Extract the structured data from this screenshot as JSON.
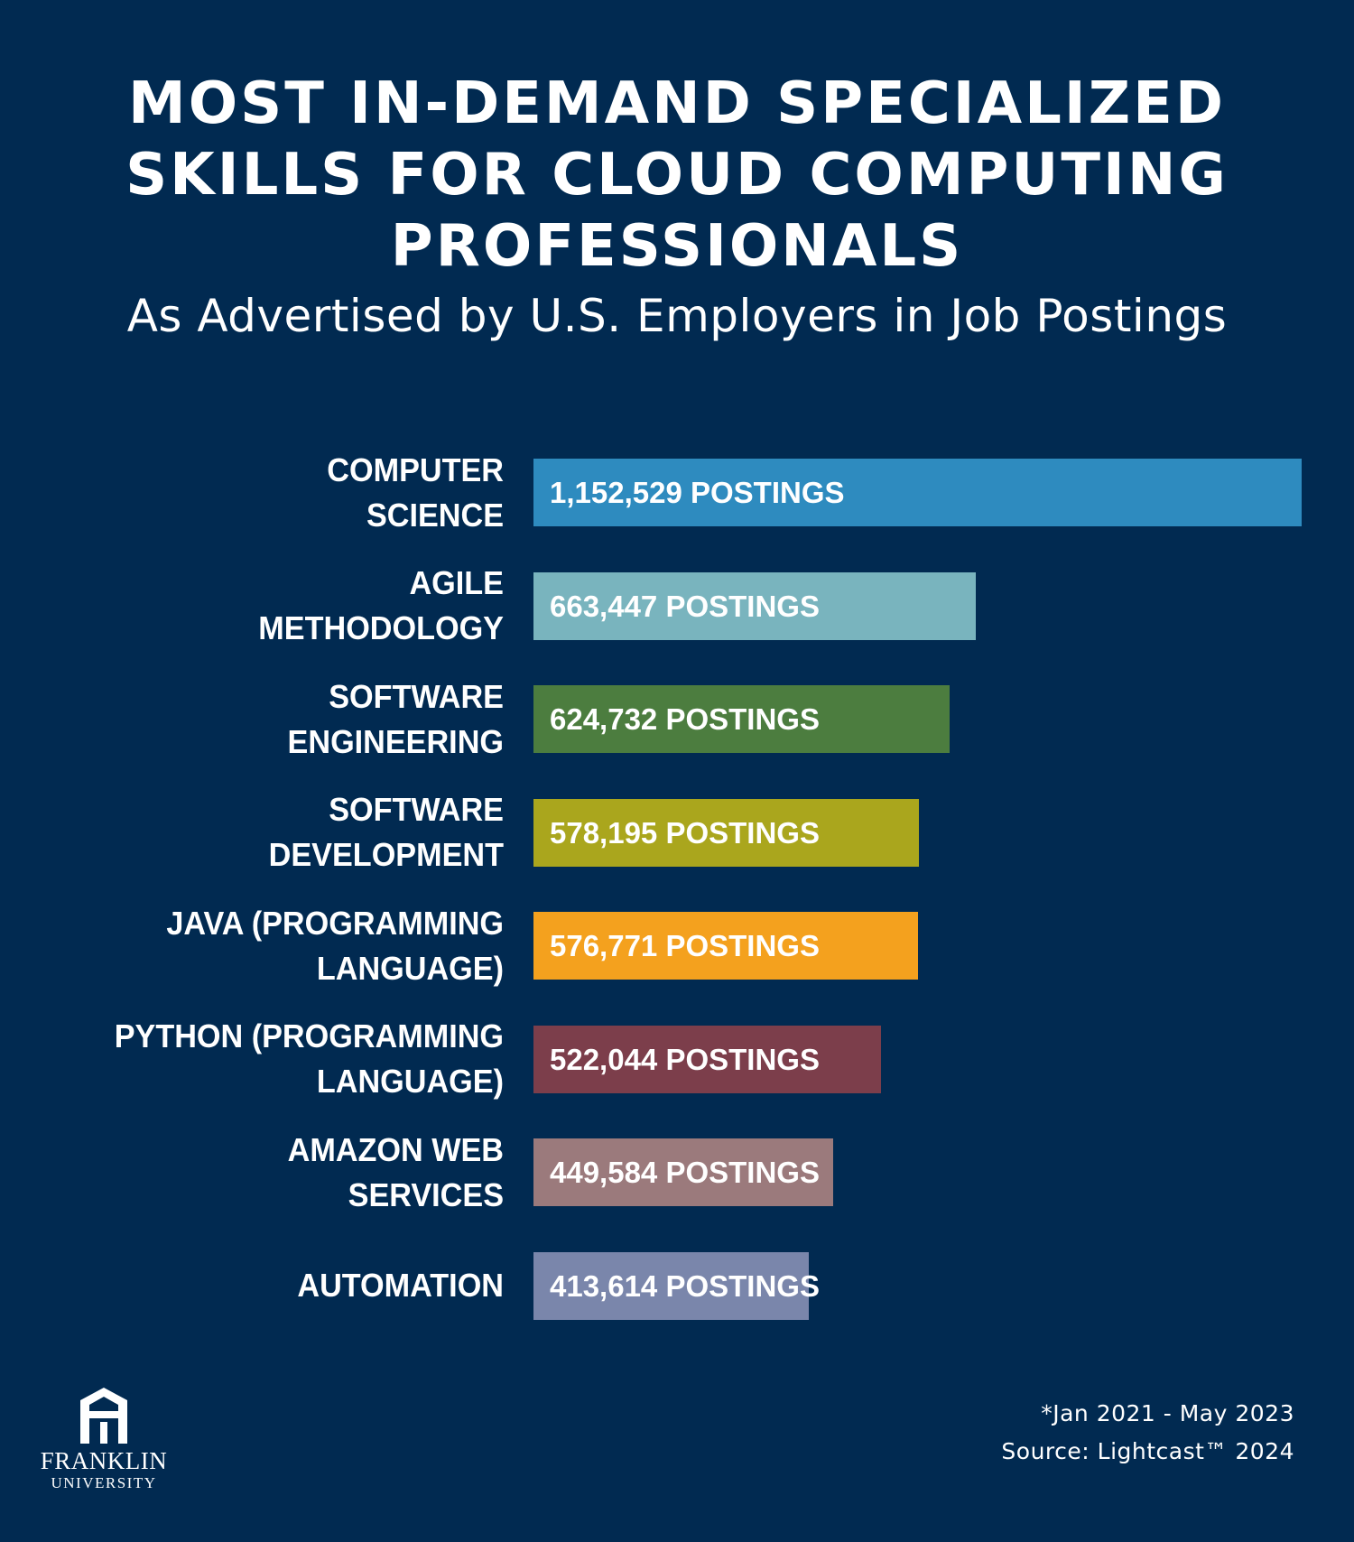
{
  "header": {
    "title": "MOST IN-DEMAND SPECIALIZED\nSKILLS FOR CLOUD COMPUTING\nPROFESSIONALS",
    "subtitle": "As Advertised by U.S. Employers in Job Postings"
  },
  "chart_data": {
    "type": "bar",
    "orientation": "horizontal",
    "categories": [
      "COMPUTER\nSCIENCE",
      "AGILE\nMETHODOLOGY",
      "SOFTWARE\nENGINEERING",
      "SOFTWARE\nDEVELOPMENT",
      "JAVA (PROGRAMMING\nLANGUAGE)",
      "PYTHON (PROGRAMMING\nLANGUAGE)",
      "AMAZON WEB\nSERVICES",
      "AUTOMATION"
    ],
    "values": [
      1152529,
      663447,
      624732,
      578195,
      576771,
      522044,
      449584,
      413614
    ],
    "data_labels": [
      "1,152,529 POSTINGS",
      "663,447 POSTINGS",
      "624,732 POSTINGS",
      "578,195 POSTINGS",
      "576,771 POSTINGS",
      "522,044 POSTINGS",
      "449,584 POSTINGS",
      "413,614 POSTINGS"
    ],
    "colors": [
      "#2e8bbf",
      "#79b4be",
      "#4c7d3f",
      "#aaa61d",
      "#f4a11e",
      "#7c3e4b",
      "#9b7a7c",
      "#7a86ab"
    ],
    "xlim": [
      0,
      1152529
    ],
    "grid": false,
    "legend": "none"
  },
  "footer": {
    "date_range": "*Jan 2021 - May 2023",
    "source": "Source: Lightcast™ 2024"
  },
  "logo": {
    "name": "FRANKLIN",
    "sub": "UNIVERSITY"
  }
}
